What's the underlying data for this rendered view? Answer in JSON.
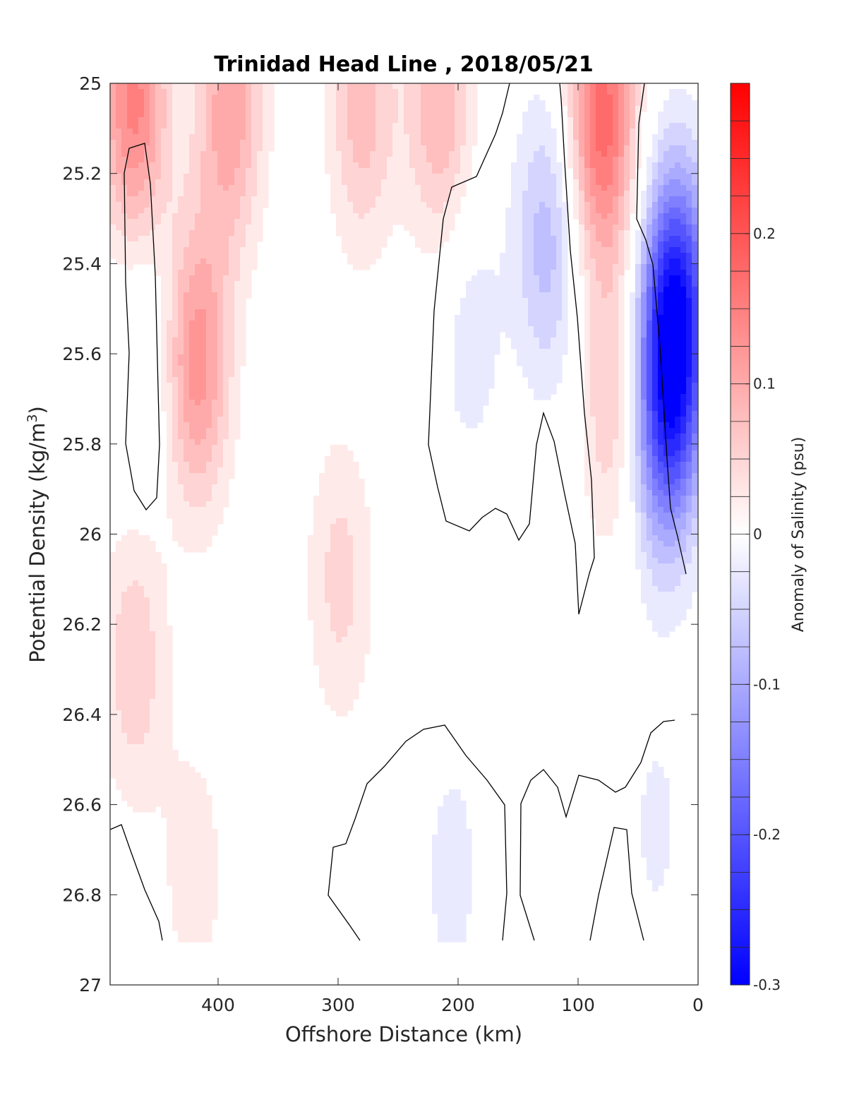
{
  "chart_data": {
    "type": "heatmap",
    "subtype": "filled-contour",
    "title": "Trinidad Head Line , 2018/05/21",
    "xlabel": "Offshore Distance (km)",
    "ylabel_main": "Potential Density (kg/m",
    "ylabel_sup": "3",
    "ylabel_close": ")",
    "colorbar_label": "Anomaly of Salinity (psu)",
    "x_ticks": [
      "400",
      "300",
      "200",
      "100",
      "0"
    ],
    "y_ticks": [
      "25",
      "25.2",
      "25.4",
      "25.6",
      "25.8",
      "26",
      "26.2",
      "26.4",
      "26.6",
      "26.8",
      "27"
    ],
    "colorbar_ticks": [
      "0.2",
      "0.1",
      "0",
      "-0.1",
      "-0.2",
      "-0.3"
    ],
    "xlim": [
      490,
      0
    ],
    "x_reversed": true,
    "ylim": [
      25,
      27
    ],
    "y_reversed": true,
    "clim": [
      -0.3,
      0.3
    ],
    "contour_step": 0.025,
    "colormap": "blue-white-red diverging",
    "colors": {
      "neg_max": "#0000ff",
      "zero": "#ffffff",
      "pos_max": "#ff0000"
    },
    "zero_contour": true,
    "grid": false,
    "features": [
      {
        "x": 418,
        "y": 25.62,
        "value": 0.14
      },
      {
        "x": 470,
        "y": 25.05,
        "value": 0.16
      },
      {
        "x": 390,
        "y": 25.05,
        "value": 0.12
      },
      {
        "x": 280,
        "y": 25.05,
        "value": 0.09
      },
      {
        "x": 215,
        "y": 25.05,
        "value": 0.1
      },
      {
        "x": 80,
        "y": 25.08,
        "value": 0.19
      },
      {
        "x": 70,
        "y": 25.7,
        "value": 0.08
      },
      {
        "x": 470,
        "y": 26.28,
        "value": 0.07
      },
      {
        "x": 298,
        "y": 26.1,
        "value": 0.06
      },
      {
        "x": 420,
        "y": 26.75,
        "value": 0.04
      },
      {
        "x": 125,
        "y": 25.35,
        "value": -0.09
      },
      {
        "x": 18,
        "y": 25.5,
        "value": -0.26
      },
      {
        "x": 28,
        "y": 25.75,
        "value": -0.18
      },
      {
        "x": 460,
        "y": 25.6,
        "value": -0.04
      },
      {
        "x": 190,
        "y": 25.55,
        "value": -0.04
      },
      {
        "x": 205,
        "y": 26.75,
        "value": -0.035
      },
      {
        "x": 35,
        "y": 26.65,
        "value": -0.03
      }
    ]
  }
}
